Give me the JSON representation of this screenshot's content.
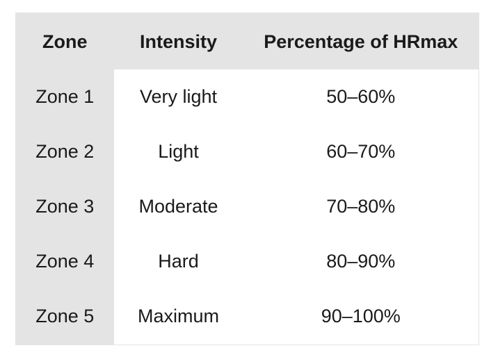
{
  "table": {
    "headers": [
      "Zone",
      "Intensity",
      "Percentage of HRmax"
    ],
    "rows": [
      [
        "Zone 1",
        "Very light",
        "50–60%"
      ],
      [
        "Zone 2",
        "Light",
        "60–70%"
      ],
      [
        "Zone 3",
        "Moderate",
        "70–80%"
      ],
      [
        "Zone 4",
        "Hard",
        "80–90%"
      ],
      [
        "Zone 5",
        "Maximum",
        "90–100%"
      ]
    ]
  },
  "colors": {
    "header_background": "#e4e4e4",
    "zone_column_background": "#e4e4e4",
    "body_background": "#ffffff",
    "text": "#1a1a1a"
  }
}
